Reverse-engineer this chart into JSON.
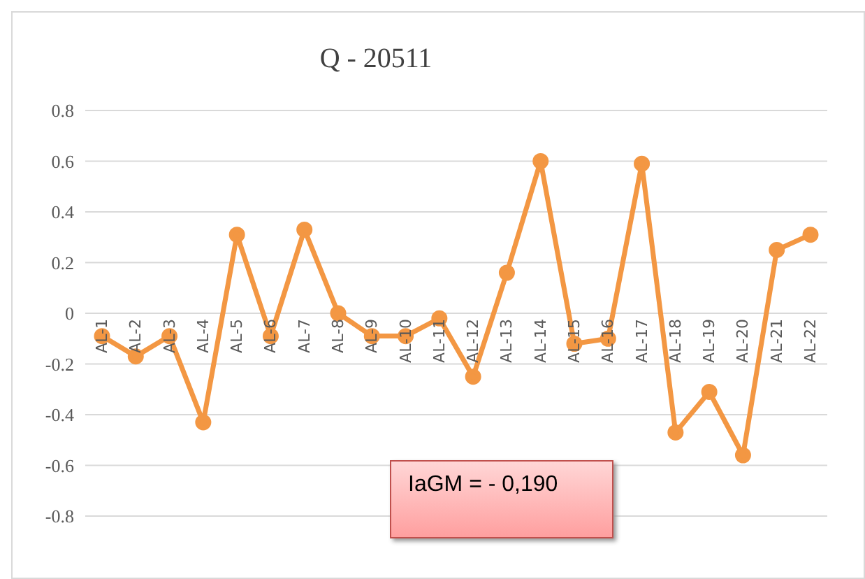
{
  "chart_data": {
    "type": "line",
    "title": "Q - 20511",
    "categories": [
      "AL-1",
      "AL-2",
      "AL-3",
      "AL-4",
      "AL-5",
      "AL-6",
      "AL-7",
      "AL-8",
      "AL-9",
      "AL-10",
      "AL-11",
      "AL-12",
      "AL-13",
      "AL-14",
      "AL-15",
      "AL-16",
      "AL-17",
      "AL-18",
      "AL-19",
      "AL-20",
      "AL-21",
      "AL-22"
    ],
    "series": [
      {
        "color": "#f39743",
        "values": [
          -0.09,
          -0.17,
          -0.09,
          -0.43,
          0.31,
          -0.09,
          0.33,
          0.0,
          -0.09,
          -0.09,
          -0.02,
          -0.25,
          0.16,
          0.6,
          -0.12,
          -0.1,
          0.59,
          -0.47,
          -0.31,
          -0.56,
          0.25,
          0.31
        ]
      }
    ],
    "ylim": [
      -0.8,
      0.8
    ],
    "yticks": [
      -0.8,
      -0.6,
      -0.4,
      -0.2,
      0,
      0.2,
      0.4,
      0.6,
      0.8
    ],
    "grid": "y",
    "marker": "circle",
    "line_style": "solid",
    "legend": false,
    "annotations": [
      "IaGM = - 0,190"
    ]
  }
}
